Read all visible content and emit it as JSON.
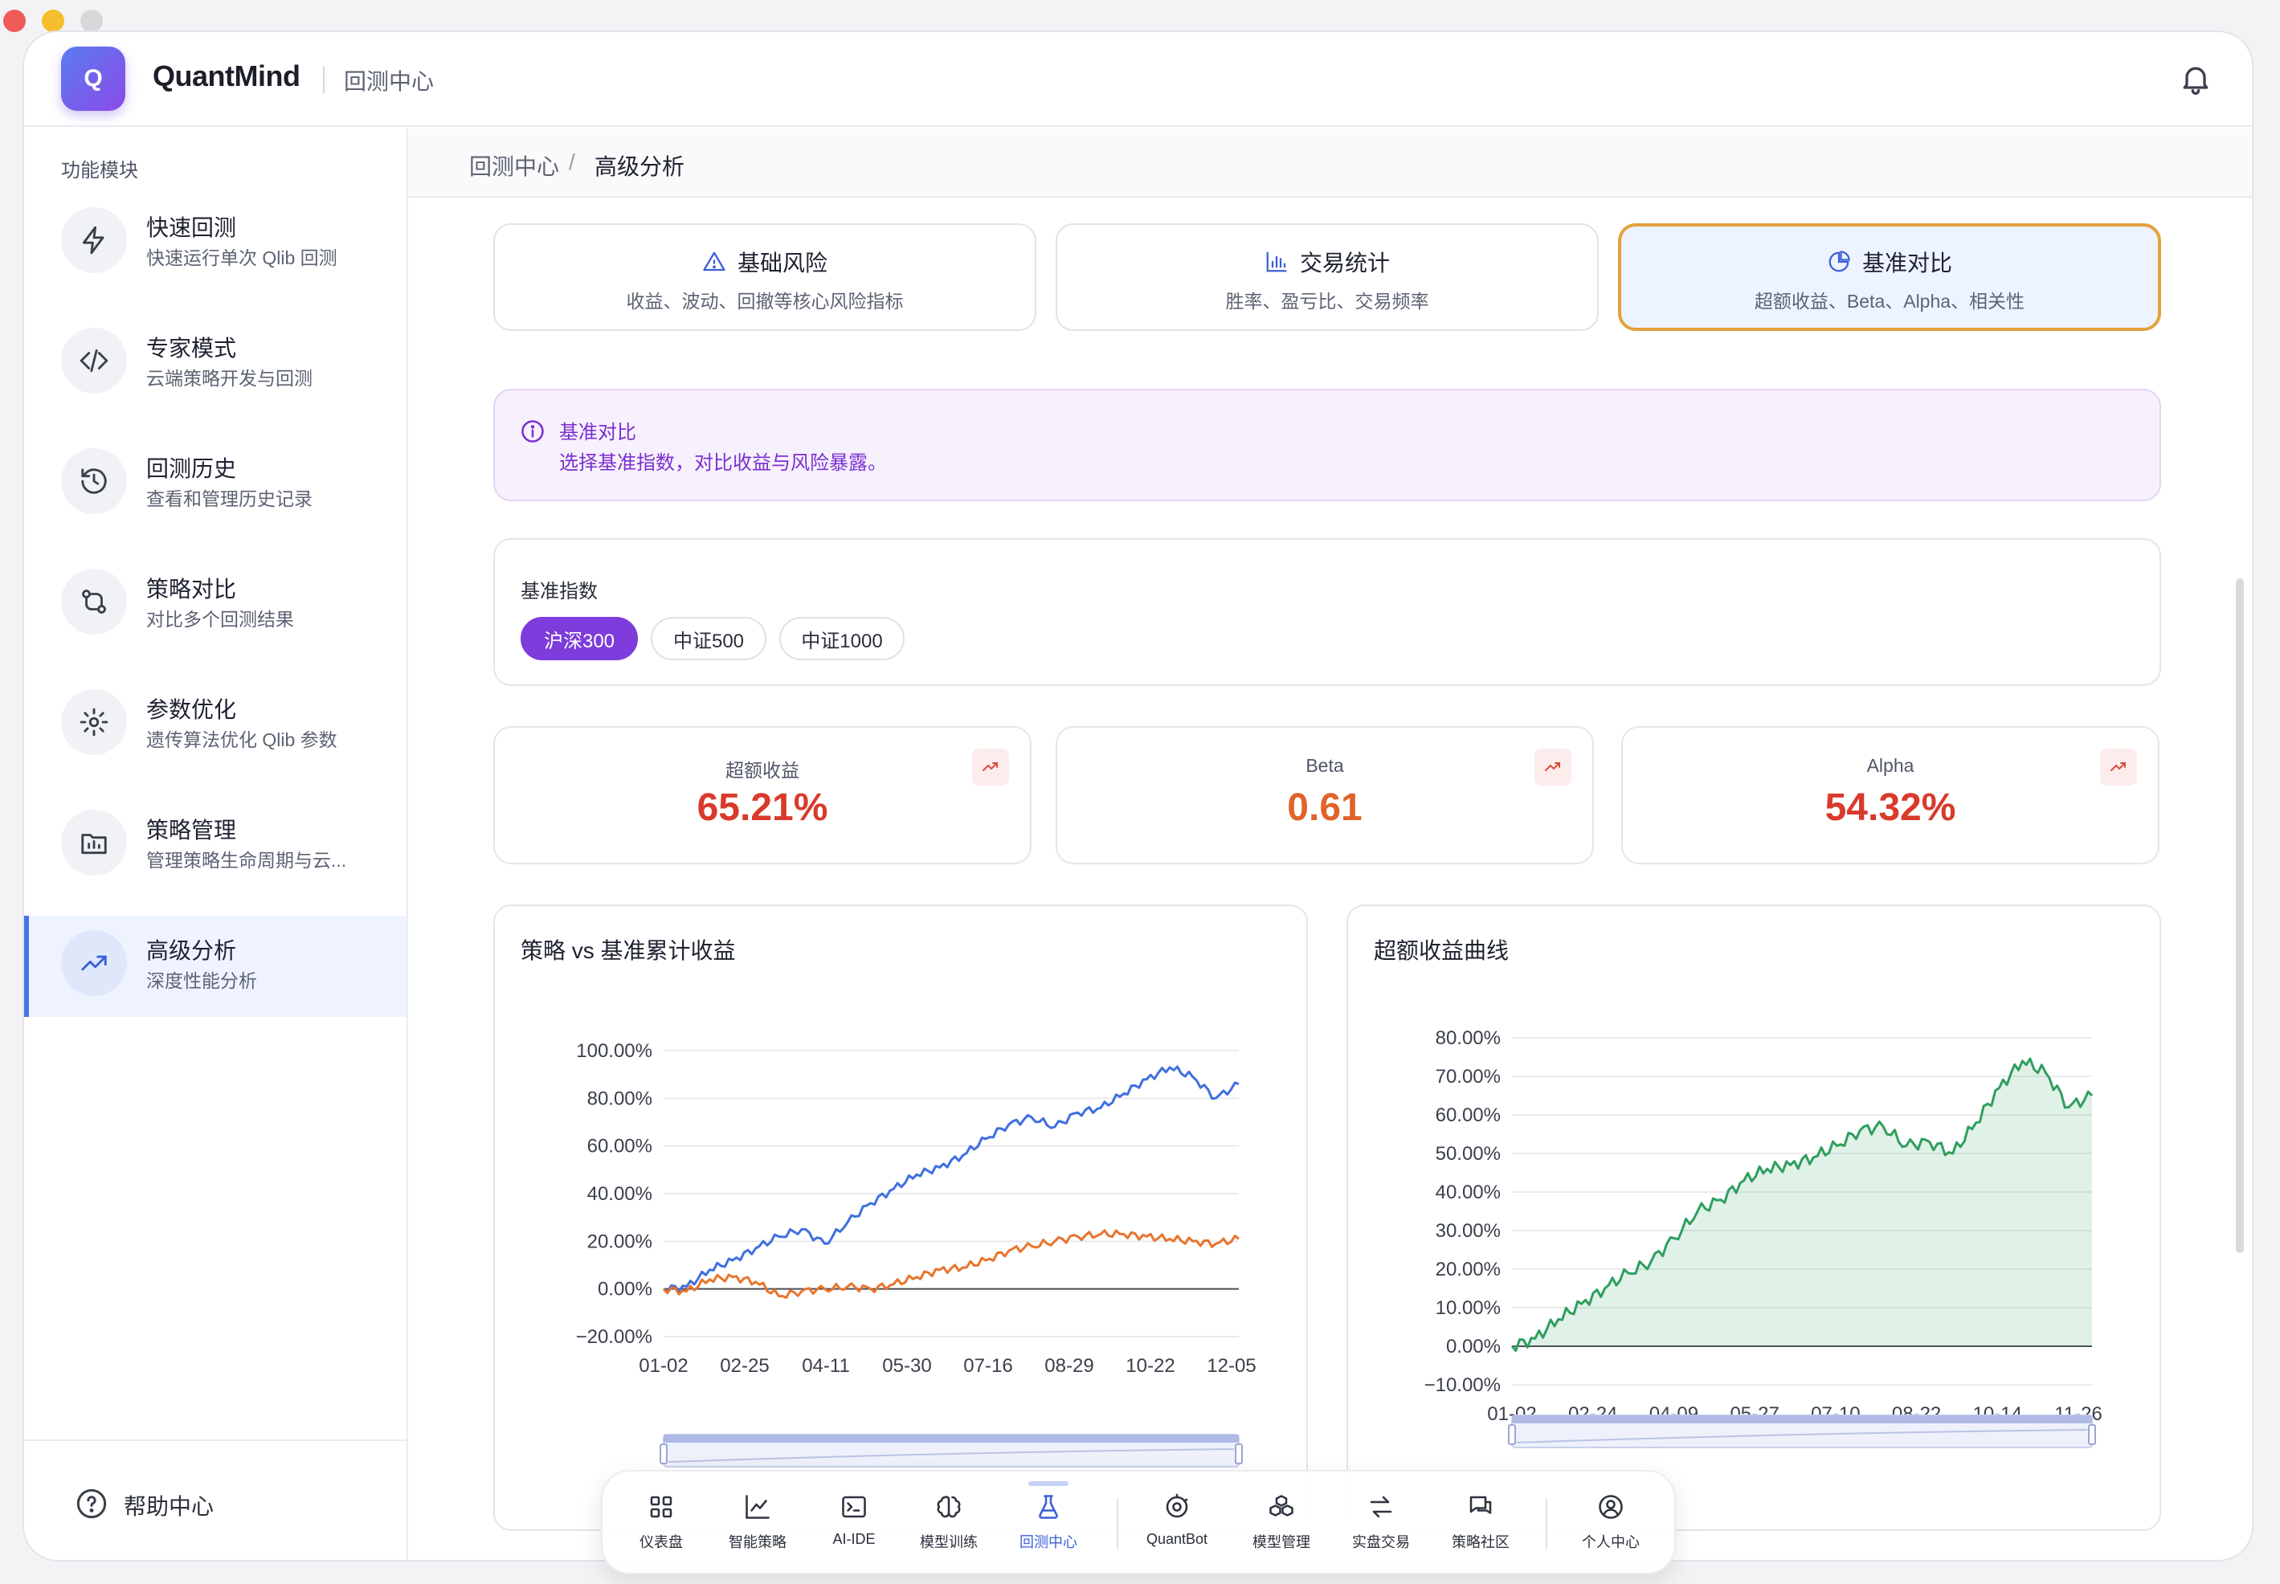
{
  "app": {
    "name": "QuantMind",
    "logo_letter": "Q",
    "section": "回测中心"
  },
  "sidebar": {
    "title": "功能模块",
    "items": [
      {
        "label": "快速回测",
        "desc": "快速运行单次 Qlib 回测",
        "icon": "lightning-icon"
      },
      {
        "label": "专家模式",
        "desc": "云端策略开发与回测",
        "icon": "code-icon"
      },
      {
        "label": "回测历史",
        "desc": "查看和管理历史记录",
        "icon": "history-icon"
      },
      {
        "label": "策略对比",
        "desc": "对比多个回测结果",
        "icon": "compare-icon"
      },
      {
        "label": "参数优化",
        "desc": "遗传算法优化 Qlib 参数",
        "icon": "gear-icon"
      },
      {
        "label": "策略管理",
        "desc": "管理策略生命周期与云...",
        "icon": "folder-chart-icon"
      },
      {
        "label": "高级分析",
        "desc": "深度性能分析",
        "icon": "trend-icon",
        "active": true
      }
    ],
    "footer": "帮助中心"
  },
  "breadcrumb": {
    "parent": "回测中心",
    "sep": "/",
    "current": "高级分析"
  },
  "tabs": [
    {
      "title": "基础风险",
      "desc": "收益、波动、回撤等核心风险指标",
      "icon": "warning-icon"
    },
    {
      "title": "交易统计",
      "desc": "胜率、盈亏比、交易频率",
      "icon": "bar-chart-icon"
    },
    {
      "title": "基准对比",
      "desc": "超额收益、Beta、Alpha、相关性",
      "icon": "pie-icon",
      "active": true
    }
  ],
  "info": {
    "title": "基准对比",
    "text": "选择基准指数，对比收益与风险暴露。"
  },
  "benchmark": {
    "label": "基准指数",
    "options": [
      "沪深300",
      "中证500",
      "中证1000"
    ],
    "selected": "沪深300"
  },
  "kpis": [
    {
      "label": "超额收益",
      "value": "65.21%",
      "color": "#d93a2b"
    },
    {
      "label": "Beta",
      "value": "0.61",
      "color": "#e0632a"
    },
    {
      "label": "Alpha",
      "value": "54.32%",
      "color": "#d93a2b"
    }
  ],
  "dock": [
    {
      "label": "仪表盘",
      "icon": "grid-icon"
    },
    {
      "label": "智能策略",
      "icon": "line-chart-icon"
    },
    {
      "label": "AI-IDE",
      "icon": "terminal-icon"
    },
    {
      "label": "模型训练",
      "icon": "brain-icon"
    },
    {
      "label": "回测中心",
      "icon": "flask-icon",
      "active": true
    },
    {
      "label": "QuantBot",
      "icon": "bot-icon"
    },
    {
      "label": "模型管理",
      "icon": "cubes-icon"
    },
    {
      "label": "实盘交易",
      "icon": "swap-icon"
    },
    {
      "label": "策略社区",
      "icon": "chat-icon"
    },
    {
      "label": "个人中心",
      "icon": "user-icon"
    }
  ],
  "colors": {
    "accent": "#7d3cdb",
    "primary": "#4a72e8",
    "active_tab_border": "#e3a23a",
    "strategy_line": "#3f6fe0",
    "benchmark_line": "#e8742c",
    "excess_line": "#2f9e5f"
  },
  "chart_data": [
    {
      "type": "line",
      "title": "策略 vs 基准累计收益",
      "x_ticks": [
        "01-02",
        "02-25",
        "04-11",
        "05-30",
        "07-16",
        "08-29",
        "10-22",
        "12-05"
      ],
      "y_ticks": [
        "100.00%",
        "80.00%",
        "60.00%",
        "40.00%",
        "20.00%",
        "0.00%",
        "−20.00%"
      ],
      "ylim": [
        -20,
        100
      ],
      "series": [
        {
          "color": "#3f6fe0",
          "x": [
            0,
            4,
            8,
            12,
            16,
            20,
            24,
            28,
            32,
            36,
            40,
            44,
            48,
            52,
            56,
            60,
            64,
            68,
            72,
            76,
            80,
            84,
            88,
            92,
            96,
            100
          ],
          "values": [
            0,
            1,
            8,
            12,
            17,
            22,
            25,
            19,
            28,
            36,
            42,
            48,
            51,
            56,
            63,
            69,
            72,
            68,
            74,
            76,
            82,
            88,
            93,
            89,
            80,
            86
          ]
        },
        {
          "color": "#e8742c",
          "x": [
            0,
            4,
            8,
            12,
            16,
            20,
            24,
            28,
            32,
            36,
            40,
            44,
            48,
            52,
            56,
            60,
            64,
            68,
            72,
            76,
            80,
            84,
            88,
            92,
            96,
            100
          ],
          "values": [
            0,
            -1,
            4,
            5,
            3,
            -3,
            -1,
            0,
            1,
            0,
            2,
            5,
            8,
            9,
            12,
            16,
            18,
            20,
            22,
            23,
            23,
            22,
            21,
            20,
            19,
            21
          ]
        }
      ]
    },
    {
      "type": "area",
      "title": "超额收益曲线",
      "x_ticks": [
        "01-02",
        "02-24",
        "04-09",
        "05-27",
        "07-10",
        "08-22",
        "10-14",
        "11-26"
      ],
      "y_ticks": [
        "80.00%",
        "70.00%",
        "60.00%",
        "50.00%",
        "40.00%",
        "30.00%",
        "20.00%",
        "10.00%",
        "0.00%",
        "−10.00%"
      ],
      "ylim": [
        -10,
        80
      ],
      "series": [
        {
          "color": "#2f9e5f",
          "x": [
            0,
            4,
            8,
            12,
            16,
            20,
            24,
            28,
            32,
            36,
            40,
            44,
            48,
            52,
            56,
            60,
            64,
            68,
            72,
            76,
            80,
            84,
            88,
            92,
            96,
            100
          ],
          "values": [
            0,
            2,
            7,
            11,
            15,
            19,
            22,
            28,
            35,
            38,
            43,
            46,
            47,
            49,
            52,
            56,
            57,
            52,
            53,
            50,
            58,
            67,
            74,
            71,
            62,
            65
          ]
        }
      ]
    }
  ]
}
